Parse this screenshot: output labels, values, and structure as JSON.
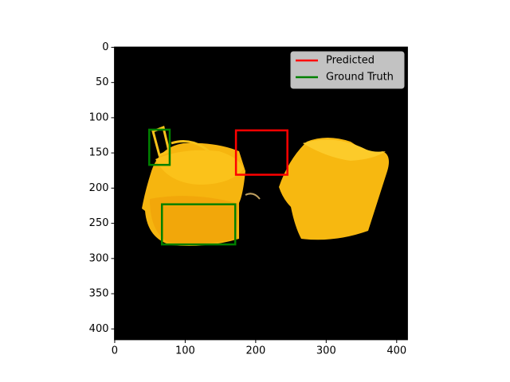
{
  "chart_data": {
    "type": "image-boxes",
    "xlim": [
      -0.5,
      415.5
    ],
    "ylim": [
      415.5,
      -0.5
    ],
    "xticks": [
      0,
      100,
      200,
      300,
      400
    ],
    "yticks": [
      0,
      50,
      100,
      150,
      200,
      250,
      300,
      350,
      400
    ],
    "legend": "upper right",
    "series": [
      {
        "name": "Predicted",
        "color": "#ff0000",
        "boxes": [
          [
            172,
            118,
            245,
            181
          ]
        ]
      },
      {
        "name": "Ground Truth",
        "color": "#008000",
        "boxes": [
          [
            49,
            117,
            78,
            167
          ],
          [
            67,
            223,
            171,
            280
          ]
        ]
      }
    ]
  }
}
